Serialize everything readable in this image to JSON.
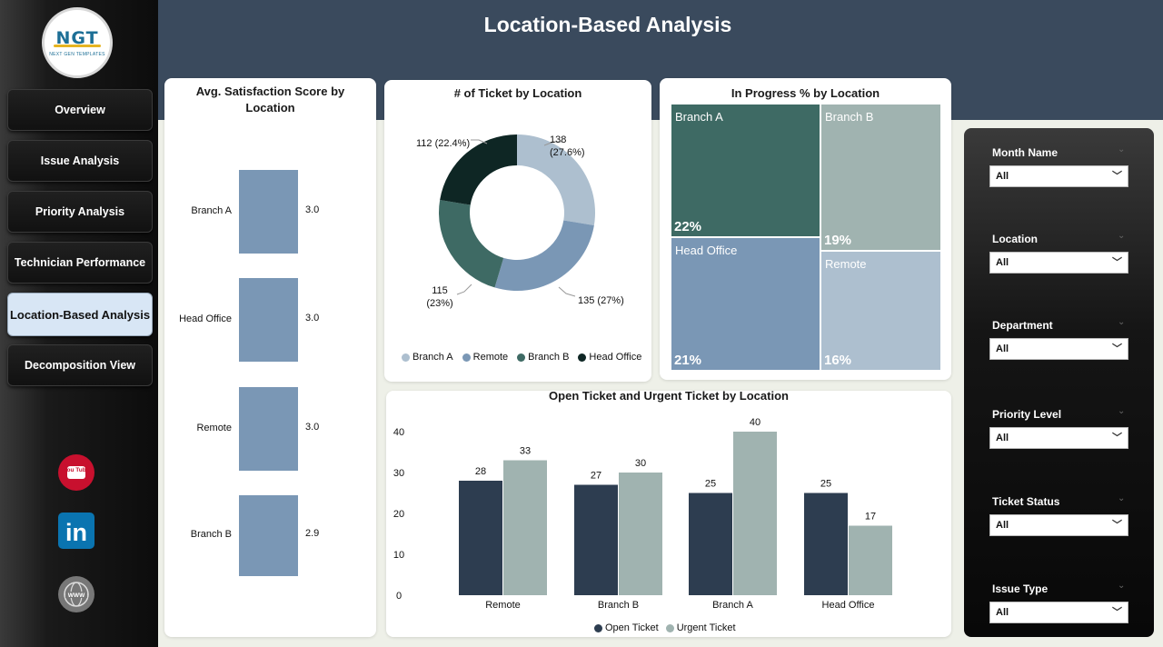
{
  "logo": {
    "mark": "NGT",
    "subtitle": "NEXT GEN TEMPLATES"
  },
  "header": {
    "title": "Location-Based Analysis"
  },
  "nav": [
    {
      "label": "Overview",
      "active": false
    },
    {
      "label": "Issue Analysis",
      "active": false
    },
    {
      "label": "Priority Analysis",
      "active": false
    },
    {
      "label": "Technician Performance",
      "active": false
    },
    {
      "label": "Location-Based Analysis",
      "active": true
    },
    {
      "label": "Decomposition View",
      "active": false
    }
  ],
  "social": [
    {
      "icon": "youtube-icon",
      "text": "You Tube"
    },
    {
      "icon": "linkedin-icon",
      "text": "in"
    },
    {
      "icon": "globe-icon",
      "text": "WWW"
    }
  ],
  "colors": {
    "header": "#3a4a5d",
    "bar_blue": "#7a97b5",
    "open_ticket": "#2d3d50",
    "urgent_ticket": "#a0b3b0",
    "branch_a": "#adbfcf",
    "remote": "#7a97b5",
    "branch_b": "#3e6a64",
    "head_office": "#0e2624"
  },
  "satisfaction": {
    "title": "Avg. Satisfaction Score by Location",
    "chart_data": {
      "type": "bar",
      "orientation": "vertical-list",
      "categories": [
        "Branch A",
        "Head Office",
        "Remote",
        "Branch B"
      ],
      "values": [
        3.0,
        3.0,
        3.0,
        2.9
      ],
      "value_labels": [
        "3.0",
        "3.0",
        "3.0",
        "2.9"
      ]
    }
  },
  "tickets_by_location": {
    "title": "# of Ticket by Location",
    "chart_data": {
      "type": "pie",
      "donut": true,
      "categories": [
        "Branch A",
        "Remote",
        "Branch B",
        "Head Office"
      ],
      "values": [
        138,
        135,
        115,
        112
      ],
      "labels": [
        "138 (27.6%)",
        "135 (27%)",
        "115 (23%)",
        "112 (22.4%)"
      ],
      "legend_position": "bottom"
    },
    "label_lines": {
      "branch_a_1": "138",
      "branch_a_2": "(27.6%)",
      "remote": "135 (27%)",
      "branch_b_1": "115",
      "branch_b_2": "(23%)",
      "head_office": "112 (22.4%)"
    }
  },
  "in_progress": {
    "title": "In Progress % by Location",
    "chart_data": {
      "type": "treemap",
      "categories": [
        "Branch A",
        "Head Office",
        "Branch B",
        "Remote"
      ],
      "values": [
        22,
        21,
        19,
        16
      ],
      "labels": [
        "22%",
        "21%",
        "19%",
        "16%"
      ]
    }
  },
  "open_urgent": {
    "title": "Open Ticket and Urgent Ticket by Location",
    "chart_data": {
      "type": "bar",
      "categories": [
        "Remote",
        "Branch B",
        "Branch A",
        "Head Office"
      ],
      "series": [
        {
          "name": "Open Ticket",
          "values": [
            28,
            27,
            25,
            25
          ]
        },
        {
          "name": "Urgent Ticket",
          "values": [
            33,
            30,
            40,
            17
          ]
        }
      ],
      "ylim": [
        0,
        40
      ],
      "yticks": [
        "0",
        "10",
        "20",
        "30",
        "40"
      ],
      "legend_position": "bottom"
    }
  },
  "filters": [
    {
      "label": "Month Name",
      "value": "All"
    },
    {
      "label": "Location",
      "value": "All"
    },
    {
      "label": "Department",
      "value": "All"
    },
    {
      "label": "Priority Level",
      "value": "All"
    },
    {
      "label": "Ticket Status",
      "value": "All"
    },
    {
      "label": "Issue Type",
      "value": "All"
    }
  ]
}
